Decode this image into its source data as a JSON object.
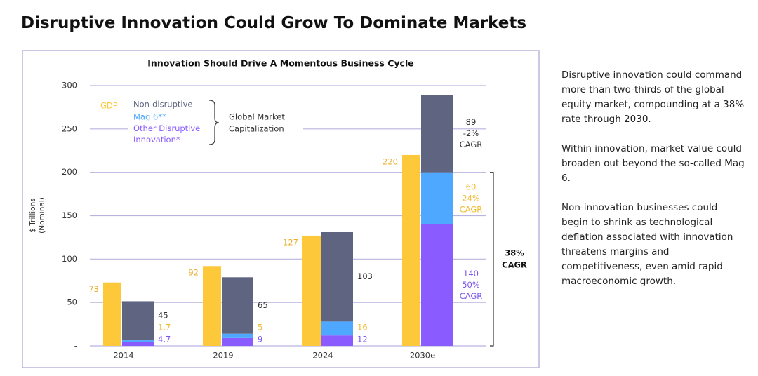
{
  "header": {
    "title": "Disruptive Innovation Could Grow To Dominate Markets"
  },
  "chart_data": {
    "type": "grouped_stacked_bar",
    "title": "Innovation Should Drive A Momentous Business Cycle",
    "y_label": [
      "$ Trillions",
      "(Nominal)"
    ],
    "categories": [
      "2014",
      "2019",
      "2024",
      "2030e"
    ],
    "ylim": [
      0,
      300
    ],
    "yticks": [
      {
        "value": 0,
        "label": "-"
      },
      50,
      100,
      150,
      200,
      250,
      300
    ],
    "grid": true,
    "legend": "top-left",
    "series": [
      {
        "name": "GDP",
        "color": "#fdc93a",
        "label_color": "#e8b030",
        "stack": "gdp",
        "values": [
          73,
          92,
          127,
          220
        ]
      },
      {
        "name": "Other Disruptive Innovation*",
        "color": "#8a5cff",
        "label_color": "#7b56f0",
        "stack": "market",
        "values": [
          4.7,
          9,
          12,
          140
        ],
        "cagr_label": [
          "50%",
          "CAGR"
        ]
      },
      {
        "name": "Mag 6**",
        "color": "#4ea8ff",
        "label_color": "#f0bb30",
        "stack": "market",
        "values": [
          1.7,
          5,
          16,
          60
        ],
        "cagr_label": [
          "24%",
          "CAGR"
        ]
      },
      {
        "name": "Non-disruptive",
        "color": "#5f6480",
        "label_color": "#333333",
        "stack": "market",
        "values": [
          45,
          65,
          103,
          89
        ],
        "cagr_label": [
          "-2%",
          "CAGR"
        ]
      }
    ],
    "bracket_label": [
      "Global Market",
      "Capitalization"
    ],
    "total_cagr_label": [
      "38%",
      "CAGR"
    ]
  },
  "sidebar": {
    "paragraphs": [
      "Disruptive innovation could command more than two-thirds of the global equity market, compounding at a 38% rate through 2030.",
      "Within innovation, market value could broaden out beyond the so-called Mag 6.",
      "Non-innovation businesses could begin to shrink as technological deflation associated with innovation threatens margins and competitiveness, even amid rapid macroeconomic growth."
    ]
  }
}
